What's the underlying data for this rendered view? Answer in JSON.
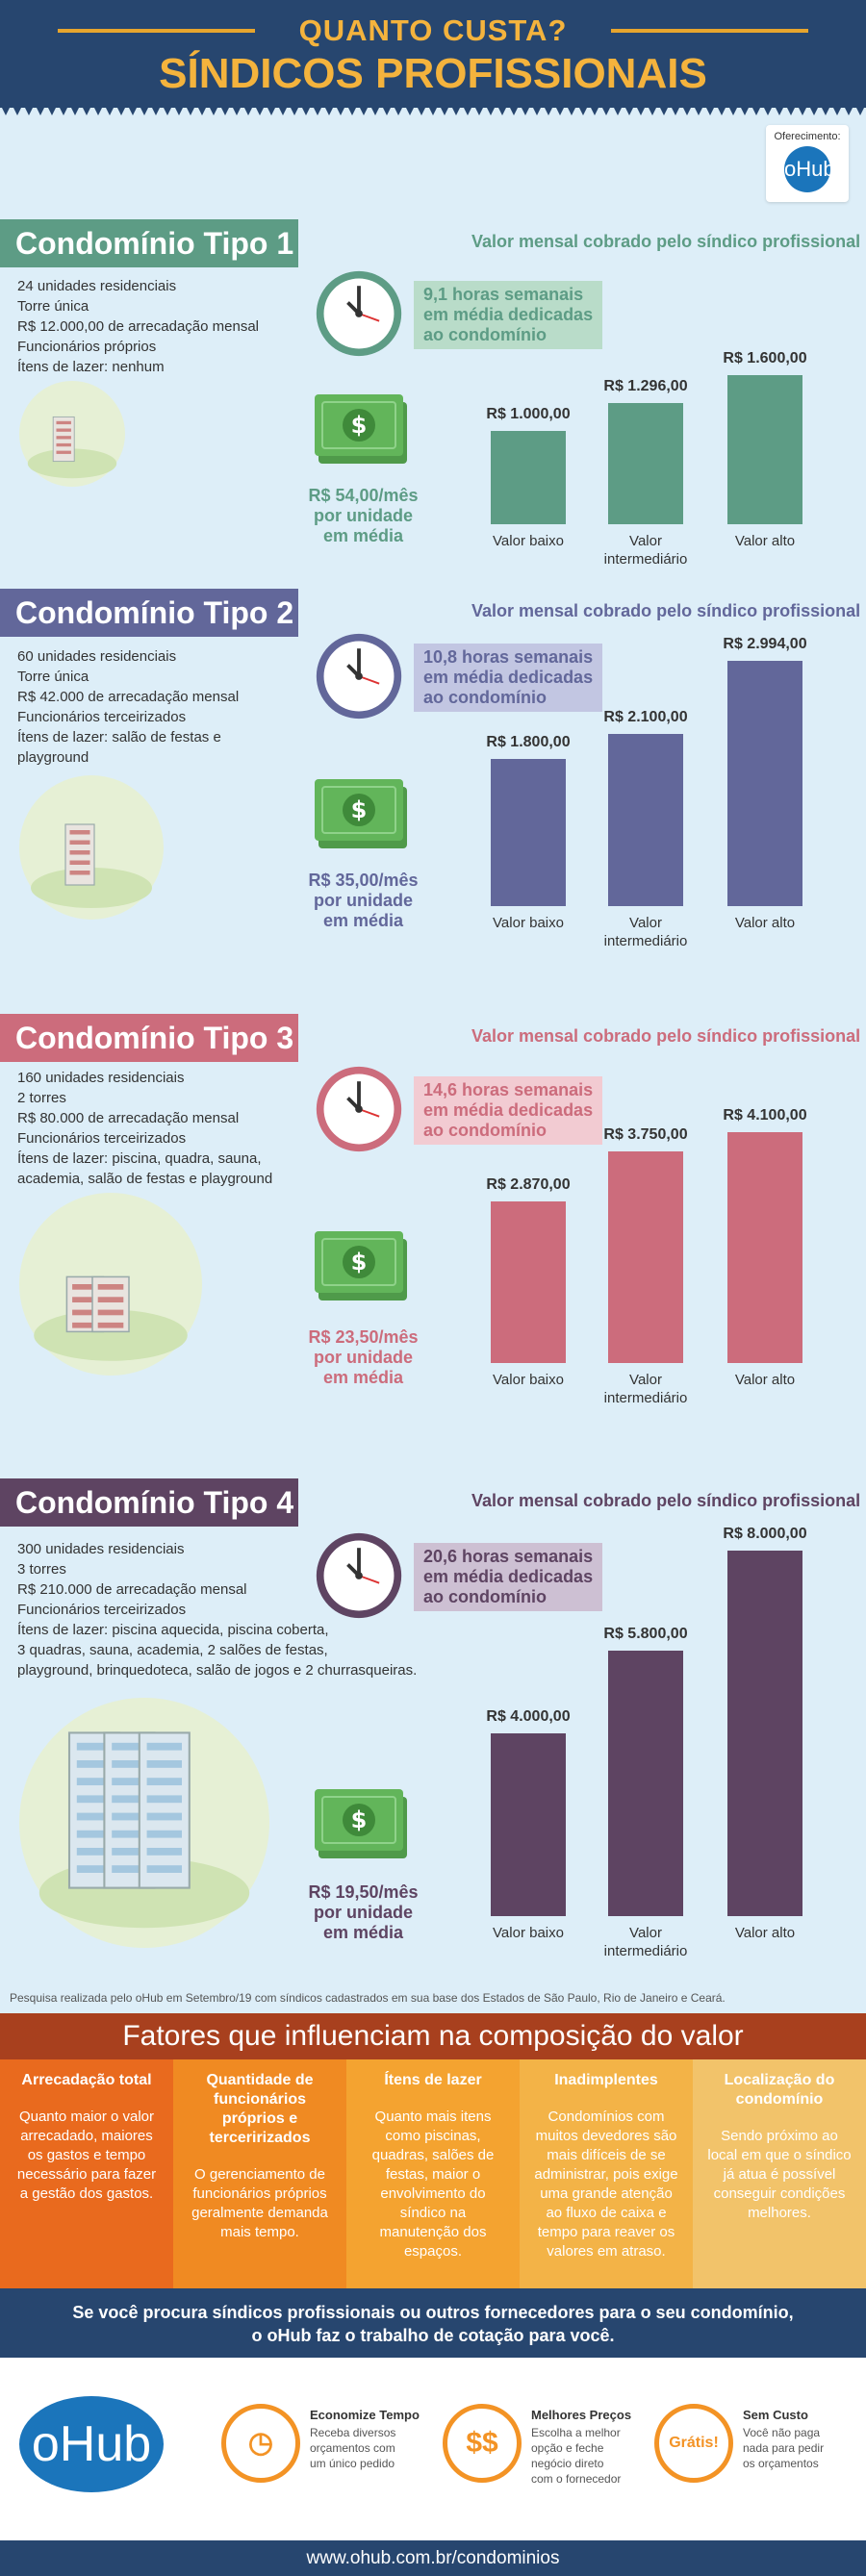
{
  "header": {
    "supertitle": "QUANTO CUSTA?",
    "title": "SÍNDICOS PROFISSIONAIS"
  },
  "sponsor": {
    "label": "Oferecimento:",
    "logo": "oHub"
  },
  "sections": [
    {
      "title": "Condomínio Tipo 1",
      "subtitle": "Valor mensal cobrado pelo síndico profissional",
      "specs": [
        "24 unidades residenciais",
        "Torre única",
        "R$ 12.000,00 de arrecadação mensal",
        "Funcionários próprios",
        "Ítens de lazer: nenhum"
      ],
      "hours_num": "9,1 horas",
      "hours_text1": "semanais",
      "hours_text2": "em média dedicadas",
      "hours_text3": "ao condomínio",
      "price": "R$ 54,00/mês",
      "price_l2": "por unidade",
      "price_l3": "em média",
      "color": "#5d9c85",
      "hl": "#b9dcc9",
      "bars": [
        {
          "label": "Valor baixo",
          "value": "R$ 1.000,00",
          "v": 1000
        },
        {
          "label": "Valor intermediário",
          "value": "R$ 1.296,00",
          "v": 1296
        },
        {
          "label": "Valor alto",
          "value": "R$ 1.600,00",
          "v": 1600
        }
      ]
    },
    {
      "title": "Condomínio Tipo 2",
      "subtitle": "Valor mensal cobrado pelo síndico profissional",
      "specs": [
        "60 unidades residenciais",
        "Torre única",
        "R$ 42.000 de arrecadação mensal",
        "Funcionários terceirizados",
        "Ítens de lazer: salão de festas e",
        "playground"
      ],
      "hours_num": "10,8 horas",
      "hours_text1": "semanais",
      "hours_text2": "em média dedicadas",
      "hours_text3": "ao condomínio",
      "price": "R$ 35,00/mês",
      "price_l2": "por unidade",
      "price_l3": "em média",
      "color": "#62679a",
      "hl": "#c2c6e2",
      "bars": [
        {
          "label": "Valor baixo",
          "value": "R$ 1.800,00",
          "v": 1800
        },
        {
          "label": "Valor intermediário",
          "value": "R$ 2.100,00",
          "v": 2100
        },
        {
          "label": "Valor alto",
          "value": "R$ 2.994,00",
          "v": 2994
        }
      ]
    },
    {
      "title": "Condomínio Tipo 3",
      "subtitle": "Valor mensal cobrado pelo síndico profissional",
      "specs": [
        "160 unidades residenciais",
        "2 torres",
        "R$ 80.000 de arrecadação mensal",
        "Funcionários terceirizados",
        "Ítens de lazer: piscina, quadra, sauna,",
        "academia, salão de festas e playground"
      ],
      "hours_num": "14,6 horas",
      "hours_text1": "semanais",
      "hours_text2": "em média dedicadas",
      "hours_text3": "ao condomínio",
      "price": "R$ 23,50/mês",
      "price_l2": "por unidade",
      "price_l3": "em média",
      "color": "#cc6c7c",
      "hl": "#f2cbd2",
      "bars": [
        {
          "label": "Valor baixo",
          "value": "R$ 2.870,00",
          "v": 2870
        },
        {
          "label": "Valor intermediário",
          "value": "R$ 3.750,00",
          "v": 3750
        },
        {
          "label": "Valor alto",
          "value": "R$ 4.100,00",
          "v": 4100
        }
      ]
    },
    {
      "title": "Condomínio Tipo 4",
      "subtitle": "Valor mensal cobrado pelo síndico profissional",
      "specs": [
        "300 unidades residenciais",
        "3 torres",
        "R$ 210.000 de arrecadação mensal",
        "Funcionários terceirizados",
        "Ítens de lazer: piscina aquecida, piscina coberta,",
        "3 quadras, sauna, academia, 2 salões de festas,",
        "playground, brinquedoteca, salão de jogos e 2 churrasqueiras."
      ],
      "hours_num": "20,6 horas",
      "hours_text1": "semanais",
      "hours_text2": "em média dedicadas",
      "hours_text3": "ao condomínio",
      "price": "R$ 19,50/mês",
      "price_l2": "por unidade",
      "price_l3": "em média",
      "color": "#5e4462",
      "hl": "#cdc0d3",
      "bars": [
        {
          "label": "Valor baixo",
          "value": "R$ 4.000,00",
          "v": 4000
        },
        {
          "label": "Valor intermediário",
          "value": "R$ 5.800,00",
          "v": 5800
        },
        {
          "label": "Valor alto",
          "value": "R$ 8.000,00",
          "v": 8000
        }
      ]
    }
  ],
  "note": "Pesquisa realizada pelo oHub em Setembro/19 com síndicos cadastrados em sua base dos Estados de São Paulo, Rio de Janeiro e Ceará.",
  "factors": {
    "title": "Fatores que influenciam na composição do valor",
    "items": [
      {
        "title": "Arrecadação total",
        "text": "Quanto maior o valor arrecadado, maiores os gastos e tempo necessário para fazer a gestão dos gastos.",
        "color": "#e96a1e"
      },
      {
        "title": "Quantidade de funcionários próprios e terceririzados",
        "text": "O gerenciamento de funcionários próprios geralmente demanda mais tempo.",
        "color": "#f08a22"
      },
      {
        "title": "Ítens de lazer",
        "text": "Quanto mais itens como piscinas, quadras, salões de festas, maior o envolvimento do síndico na manutenção dos espaços.",
        "color": "#f4a330"
      },
      {
        "title": "Inadimplentes",
        "text": "Condomínios com muitos devedores são mais difíceis de se administrar, pois exige uma grande atenção ao fluxo de caixa e tempo para reaver os valores em atraso.",
        "color": "#f3b347"
      },
      {
        "title": "Localização do condomínio",
        "text": "Sendo próximo ao local em que o síndico já atua é possível conseguir condições melhores.",
        "color": "#f2c36a"
      }
    ]
  },
  "cta": {
    "line1": "Se você procura síndicos profissionais ou outros fornecedores para o seu condomínio,",
    "line2": "o oHub faz o trabalho de cotação para você."
  },
  "features": {
    "logo": "oHub",
    "items": [
      {
        "title": "Economize Tempo",
        "text": [
          "Receba diversos",
          "orçamentos com",
          "um único pedido"
        ],
        "icon": "clock-icon",
        "glyph": "◷"
      },
      {
        "title": "Melhores Preços",
        "text": [
          "Escolha a melhor",
          "opção e feche",
          "negócio direto",
          "com o fornecedor"
        ],
        "icon": "dollar-icon",
        "glyph": "$$"
      },
      {
        "title": "Sem Custo",
        "text": [
          "Você não paga",
          "nada para pedir",
          "os orçamentos"
        ],
        "icon": "free-badge-icon",
        "glyph": "Grátis!"
      }
    ]
  },
  "footer": "www.ohub.com.br/condominios"
}
